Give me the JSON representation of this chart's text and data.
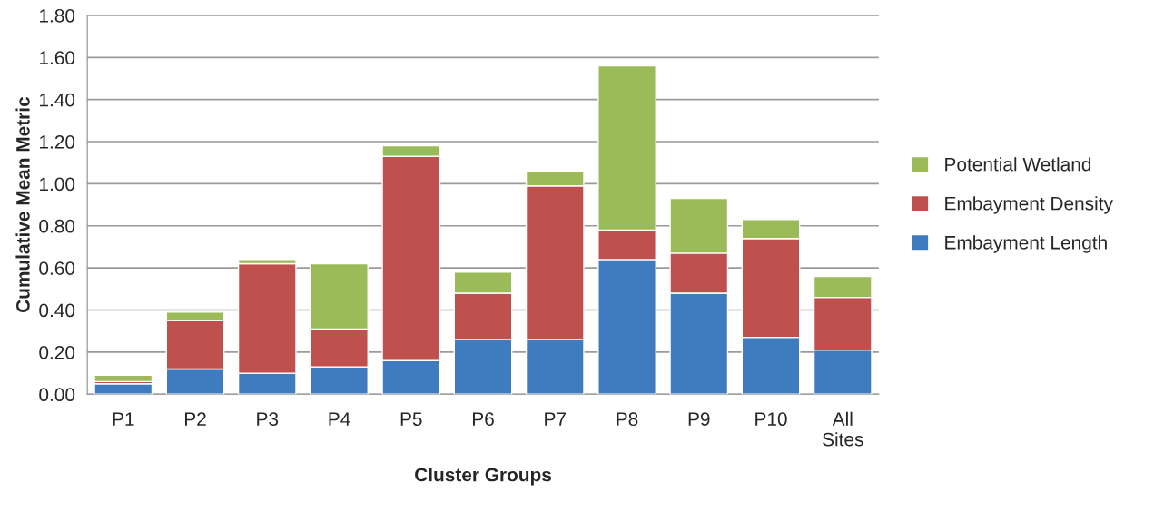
{
  "chart_data": {
    "type": "bar",
    "stacked": true,
    "xlabel": "Cluster Groups",
    "ylabel": "Cumulative Mean Metric",
    "categories": [
      "P1",
      "P2",
      "P3",
      "P4",
      "P5",
      "P6",
      "P7",
      "P8",
      "P9",
      "P10",
      "All\nSites"
    ],
    "series": [
      {
        "name": "Embayment Length",
        "color": "#3f7cbf",
        "values": [
          0.05,
          0.12,
          0.1,
          0.13,
          0.16,
          0.26,
          0.26,
          0.64,
          0.48,
          0.27,
          0.21
        ]
      },
      {
        "name": "Embayment Density",
        "color": "#c0504d",
        "values": [
          0.01,
          0.23,
          0.52,
          0.18,
          0.97,
          0.22,
          0.73,
          0.14,
          0.19,
          0.47,
          0.25
        ]
      },
      {
        "name": "Potential Wetland",
        "color": "#9bbb59",
        "values": [
          0.03,
          0.04,
          0.02,
          0.31,
          0.05,
          0.1,
          0.07,
          0.78,
          0.26,
          0.09,
          0.1
        ]
      }
    ],
    "ylim": [
      0,
      1.8
    ],
    "yticks": [
      {
        "value": 0,
        "label": "0.00"
      },
      {
        "value": 0.2,
        "label": "0.20"
      },
      {
        "value": 0.4,
        "label": "0.40"
      },
      {
        "value": 0.6,
        "label": "0.60"
      },
      {
        "value": 0.8,
        "label": "0.80"
      },
      {
        "value": 1.0,
        "label": "1.00"
      },
      {
        "value": 1.2,
        "label": "1.20"
      },
      {
        "value": 1.4,
        "label": "1.40"
      },
      {
        "value": 1.6,
        "label": "1.60"
      },
      {
        "value": 1.8,
        "label": "1.80"
      }
    ],
    "grid": "y",
    "legend": "right"
  }
}
